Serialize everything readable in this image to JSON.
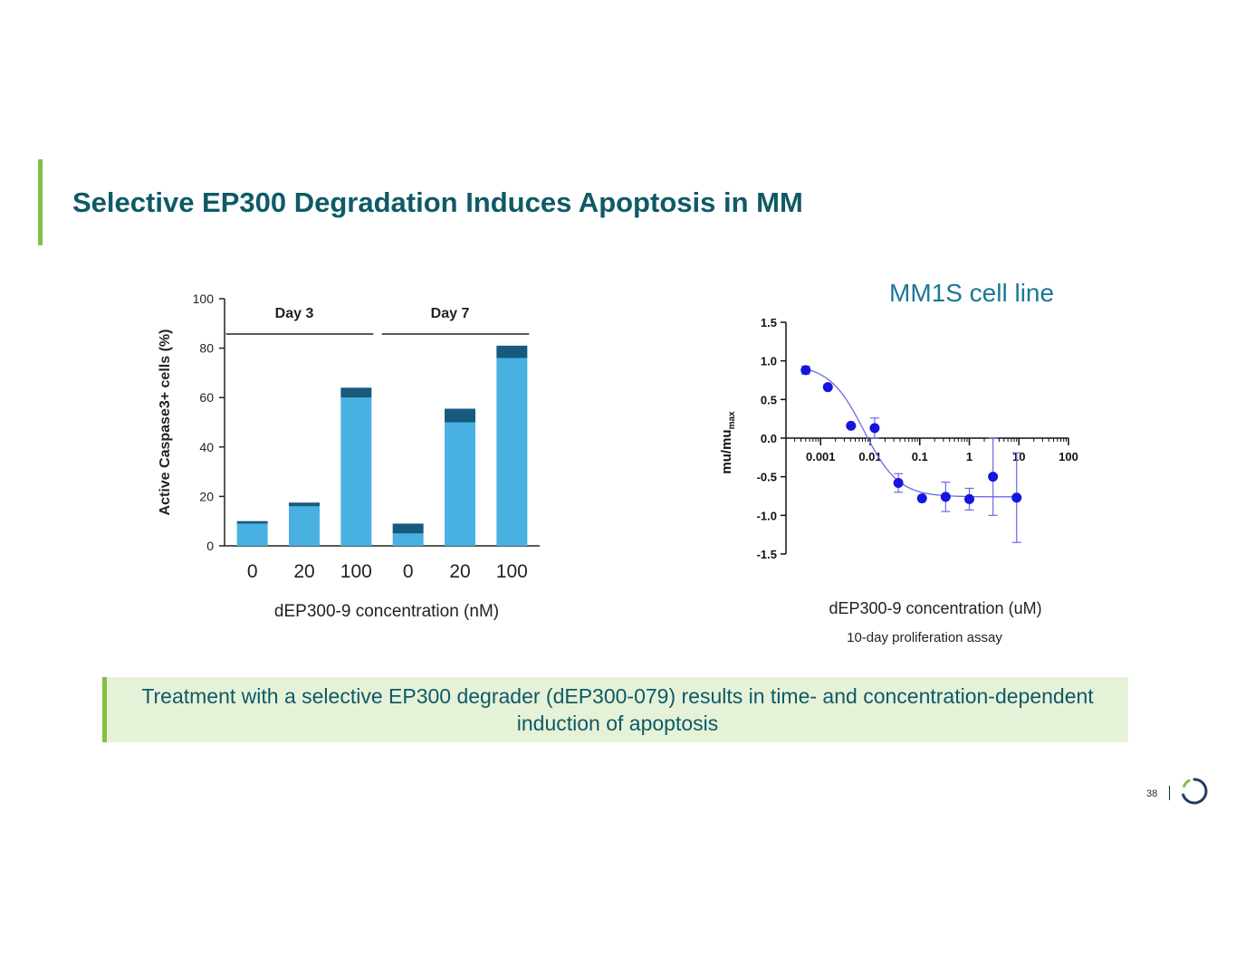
{
  "colors": {
    "accent_green": "#7dc242",
    "title_color": "#0e5a66",
    "subtitle_color": "#1a7896",
    "callout_bg": "#e6f2d8",
    "bar_light": "#48b1e1",
    "bar_dark": "#175a7e",
    "curve_color": "#6a6ae6",
    "point_color": "#1515dd"
  },
  "slide": {
    "title": "Selective EP300 Degradation Induces Apoptosis in MM",
    "subtitle": "MM1S cell line",
    "callout": "Treatment with a selective EP300 degrader (dEP300-079) results in time- and concentration-dependent induction of apoptosis",
    "page_number": "38",
    "logo_icon": "circular-ring-logo-icon"
  },
  "chart_data": [
    {
      "type": "bar",
      "stacked": true,
      "ylabel": "Active Caspase3+ cells (%)",
      "xlabel": "dEP300-9 concentration (nM)",
      "ylim": [
        0,
        100
      ],
      "yticks": [
        0,
        20,
        40,
        60,
        80,
        100
      ],
      "groups": [
        "Day 3",
        "Day 7"
      ],
      "categories": [
        "0",
        "20",
        "100",
        "0",
        "20",
        "100"
      ],
      "group_of_category": [
        0,
        0,
        0,
        1,
        1,
        1
      ],
      "series": [
        {
          "name": "base",
          "values": [
            9,
            16,
            60,
            5,
            50,
            76
          ]
        },
        {
          "name": "top",
          "values": [
            1,
            1.5,
            4,
            4,
            5.5,
            5
          ]
        }
      ]
    },
    {
      "type": "scatter",
      "xscale": "log",
      "ylabel_main": "mu/mu",
      "ylabel_sub": "max",
      "xlabel": "dEP300-9 concentration (uM)",
      "caption": "10-day proliferation assay",
      "ylim": [
        -1.5,
        1.5
      ],
      "yticks": [
        1.5,
        1.0,
        0.5,
        0.0,
        -0.5,
        -1.0,
        -1.5
      ],
      "ytick_labels": [
        "1.5",
        "1.0",
        "0.5",
        "0.0",
        "-0.5",
        "-1.0",
        "-1.5"
      ],
      "xlim": [
        0.0002,
        100
      ],
      "xticks": [
        0.001,
        0.01,
        0.1,
        1,
        10,
        100
      ],
      "xtick_labels": [
        "0.001",
        "0.01",
        "0.1",
        "1",
        "10",
        "100"
      ],
      "points": [
        {
          "x": 0.0005,
          "y": 0.88,
          "err": 0.05
        },
        {
          "x": 0.0014,
          "y": 0.66,
          "err": 0
        },
        {
          "x": 0.0041,
          "y": 0.16,
          "err": 0
        },
        {
          "x": 0.0123,
          "y": 0.13,
          "err": 0.13
        },
        {
          "x": 0.037,
          "y": -0.58,
          "err": 0.12
        },
        {
          "x": 0.111,
          "y": -0.78,
          "err": 0
        },
        {
          "x": 0.333,
          "y": -0.76,
          "err": 0.19
        },
        {
          "x": 1,
          "y": -0.79,
          "err": 0.14
        },
        {
          "x": 3,
          "y": -0.5,
          "err": 0.5
        },
        {
          "x": 9,
          "y": -0.77,
          "err": 0.58
        }
      ],
      "fit": {
        "top": 0.95,
        "bottom": -0.76,
        "ec50": 0.0075,
        "hill": 1.25
      }
    }
  ]
}
